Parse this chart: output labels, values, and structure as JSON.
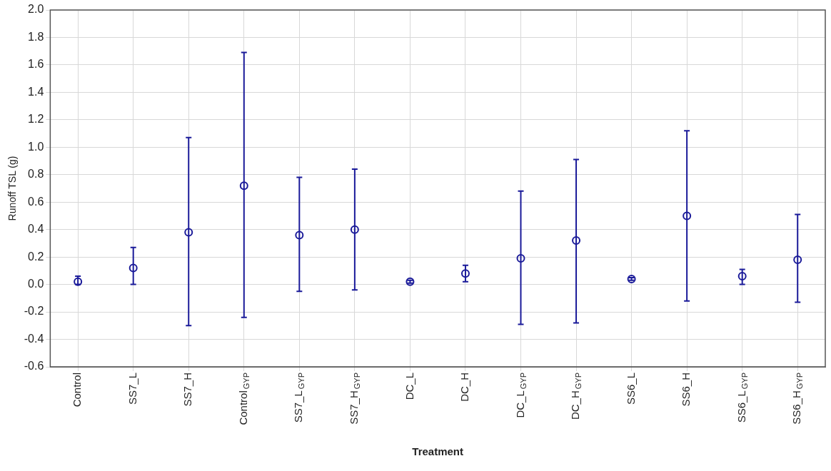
{
  "chart_data": {
    "type": "scatter",
    "xlabel": "Treatment",
    "ylabel": "Runoff TSL (g)",
    "categories": [
      "Control",
      "SS7_L",
      "SS7_H",
      "Control$_{GYP}$",
      "SS7_L$_{GYP}$",
      "SS7_H$_{GYP}$",
      "DC_L",
      "DC_H",
      "DC_L$_{GYP}$",
      "DC_H$_{GYP}$",
      "SS6_L",
      "SS6_H",
      "SS6_L$_{GYP}$",
      "SS6_H$_{GYP}$"
    ],
    "series": [
      {
        "color": "#1a1a99",
        "values": [
          0.02,
          0.12,
          0.38,
          0.72,
          0.36,
          0.4,
          0.02,
          0.08,
          0.19,
          0.32,
          0.04,
          0.5,
          0.06,
          0.18
        ],
        "errors": [
          [
            0.0,
            0.06
          ],
          [
            0.0,
            0.27
          ],
          [
            -0.3,
            1.07
          ],
          [
            -0.24,
            1.69
          ],
          [
            -0.05,
            0.78
          ],
          [
            -0.04,
            0.84
          ],
          [
            0.01,
            0.03
          ],
          [
            0.02,
            0.14
          ],
          [
            -0.29,
            0.68
          ],
          [
            -0.28,
            0.91
          ],
          [
            0.03,
            0.05
          ],
          [
            -0.12,
            1.12
          ],
          [
            0.0,
            0.11
          ],
          [
            -0.13,
            0.51
          ]
        ]
      }
    ],
    "ylim": [
      -0.6,
      2.0
    ],
    "yticks": [
      {
        "value": -0.6,
        "label": "-0.6"
      },
      {
        "value": -0.4,
        "label": "-0.4"
      },
      {
        "value": -0.2,
        "label": "-0.2"
      },
      {
        "value": 0,
        "label": "0.0"
      },
      {
        "value": 0.2,
        "label": "0.2"
      },
      {
        "value": 0.4,
        "label": "0.4"
      },
      {
        "value": 0.6,
        "label": "0.6"
      },
      {
        "value": 0.8,
        "label": "0.8"
      },
      {
        "value": 1.0,
        "label": "1.0"
      },
      {
        "value": 1.2,
        "label": "1.2"
      },
      {
        "value": 1.4,
        "label": "1.4"
      },
      {
        "value": 1.6,
        "label": "1.6"
      },
      {
        "value": 1.8,
        "label": "1.8"
      },
      {
        "value": 2.0,
        "label": "2.0"
      }
    ],
    "grid": true,
    "marker": "circle"
  }
}
